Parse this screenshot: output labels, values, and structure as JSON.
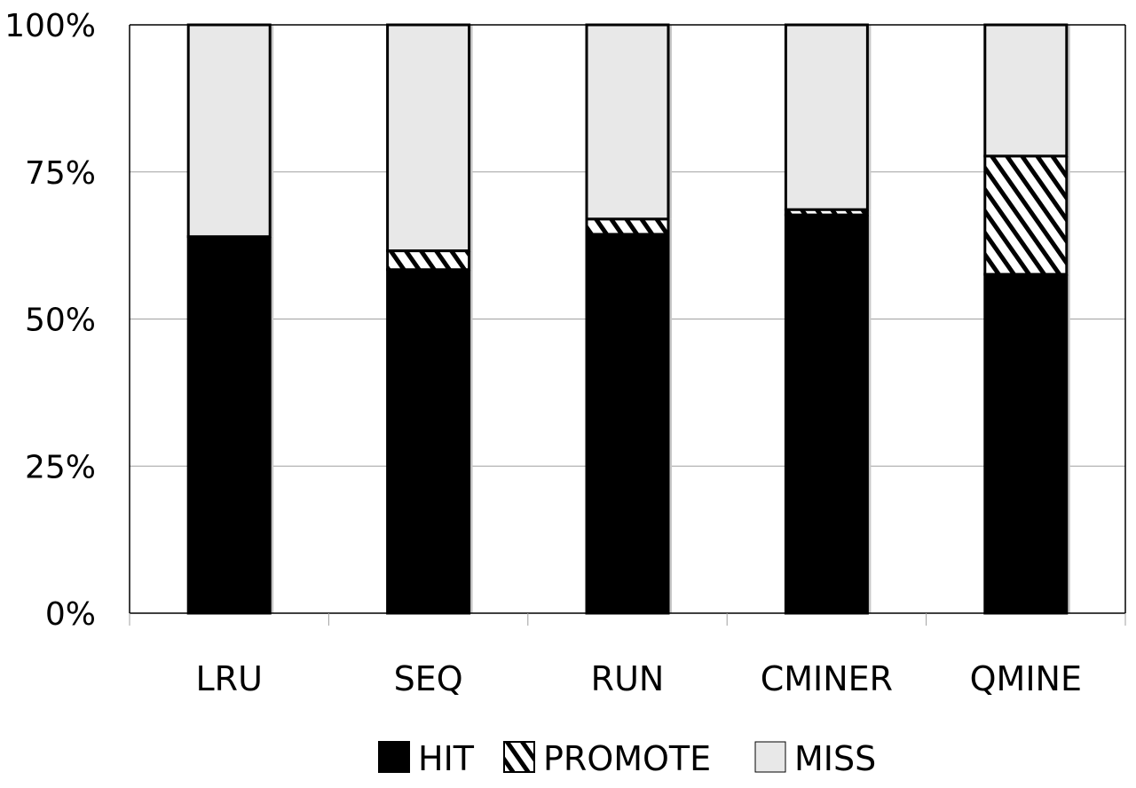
{
  "chart_data": {
    "type": "bar",
    "stacked": true,
    "categories": [
      "LRU",
      "SEQ",
      "RUN",
      "CMINER",
      "QMINE"
    ],
    "series": [
      {
        "name": "HIT",
        "values": [
          64,
          58.4,
          64.4,
          67.7,
          57.6
        ],
        "color": "#000000",
        "pattern": "solid"
      },
      {
        "name": "PROMOTE",
        "values": [
          0,
          3.2,
          2.6,
          0.9,
          20.1
        ],
        "color": "#000000",
        "pattern": "diagonal-hatch"
      },
      {
        "name": "MISS",
        "values": [
          36,
          38.4,
          33,
          31.4,
          22.3
        ],
        "color": "#e8e8e8",
        "pattern": "solid"
      }
    ],
    "ylim": [
      0,
      100
    ],
    "yticks": [
      "0%",
      "25%",
      "50%",
      "75%",
      "100%"
    ],
    "grid": true,
    "legend_position": "bottom",
    "title": "",
    "xlabel": "",
    "ylabel": ""
  }
}
